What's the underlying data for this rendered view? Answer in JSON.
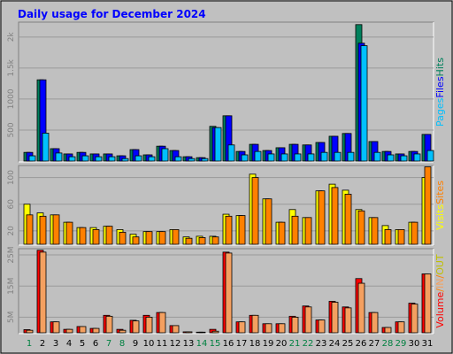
{
  "chart_data": [
    {
      "type": "bar",
      "title": "Daily usage for December 2024",
      "categories": [
        "1",
        "2",
        "3",
        "4",
        "5",
        "6",
        "7",
        "8",
        "9",
        "10",
        "11",
        "12",
        "13",
        "14",
        "15",
        "16",
        "17",
        "18",
        "19",
        "20",
        "21",
        "22",
        "23",
        "24",
        "25",
        "26",
        "27",
        "28",
        "29",
        "30",
        "31"
      ],
      "category_colors": [
        "#008040",
        "#000000",
        "#000000",
        "#000000",
        "#000000",
        "#000000",
        "#008040",
        "#008040",
        "#000000",
        "#000000",
        "#000000",
        "#000000",
        "#000000",
        "#008040",
        "#008040",
        "#000000",
        "#000000",
        "#000000",
        "#000000",
        "#000000",
        "#008040",
        "#008040",
        "#000000",
        "#000000",
        "#000000",
        "#000000",
        "#000000",
        "#008040",
        "#008040",
        "#000000",
        "#000000"
      ],
      "series": [
        {
          "name": "Hits",
          "color": "#00805c",
          "values": [
            140,
            1310,
            200,
            115,
            140,
            115,
            115,
            85,
            185,
            100,
            240,
            170,
            70,
            55,
            560,
            730,
            155,
            270,
            170,
            215,
            270,
            260,
            300,
            400,
            445,
            2200,
            315,
            155,
            115,
            155,
            430
          ]
        },
        {
          "name": "Files",
          "color": "#0000ff",
          "values": [
            140,
            1310,
            200,
            115,
            140,
            115,
            115,
            85,
            185,
            100,
            240,
            170,
            70,
            55,
            540,
            730,
            155,
            270,
            170,
            215,
            270,
            260,
            300,
            400,
            445,
            1900,
            315,
            155,
            115,
            155,
            430
          ]
        },
        {
          "name": "Pages",
          "color": "#00c0ff",
          "values": [
            85,
            450,
            130,
            70,
            85,
            70,
            70,
            40,
            85,
            70,
            200,
            70,
            40,
            40,
            540,
            260,
            100,
            155,
            115,
            115,
            115,
            115,
            140,
            140,
            140,
            1860,
            140,
            100,
            85,
            115,
            170
          ]
        }
      ],
      "legend_order": [
        2,
        1,
        0
      ],
      "ylim": [
        0,
        2240
      ],
      "yticks": [
        500,
        1000,
        {
          "value": 1500,
          "label": "1.5k"
        },
        {
          "value": 2000,
          "label": "2k"
        }
      ]
    },
    {
      "type": "bar",
      "series": [
        {
          "name": "Visits",
          "color": "#ffff00",
          "values": [
            60,
            47,
            44,
            33,
            25,
            25,
            27,
            22,
            15,
            19,
            19,
            22,
            11,
            12,
            12,
            45,
            43,
            105,
            68,
            33,
            52,
            40,
            80,
            90,
            81,
            52,
            40,
            28,
            22,
            33,
            100
          ]
        },
        {
          "name": "Sites",
          "color": "#ff8000",
          "values": [
            44,
            42,
            44,
            33,
            25,
            22,
            27,
            18,
            11,
            19,
            19,
            22,
            9,
            10,
            11,
            42,
            43,
            100,
            68,
            33,
            42,
            40,
            80,
            85,
            75,
            50,
            40,
            22,
            22,
            33,
            116
          ]
        }
      ],
      "legend_order": [
        0,
        1
      ],
      "ylim": [
        0,
        118
      ],
      "yticks": [
        20,
        60,
        100
      ]
    },
    {
      "type": "bar",
      "series": [
        {
          "name": "Volume",
          "color": "#ff0000",
          "values": [
            1,
            26.5,
            3.5,
            1.1,
            2,
            1.4,
            5.6,
            1.1,
            4,
            5.6,
            6.5,
            2.3,
            0.3,
            0.2,
            1.1,
            25.9,
            3.5,
            5.6,
            2.9,
            2.9,
            5.3,
            8.6,
            4.1,
            10.1,
            8.3,
            17.4,
            6.5,
            1.7,
            3.5,
            9.5,
            18.9
          ]
        },
        {
          "name": "IN",
          "color": "#f4a060",
          "values": [
            0.8,
            25.9,
            3.5,
            1.1,
            2,
            1.4,
            5.3,
            0.8,
            3.8,
            5,
            6.5,
            2.3,
            0.3,
            0.2,
            0.5,
            25.6,
            3.5,
            5.6,
            2.9,
            2.9,
            5,
            8.3,
            4.1,
            9.8,
            8,
            15.9,
            6.5,
            1.7,
            3.5,
            9.2,
            18.9
          ]
        }
      ],
      "legend_extra": {
        "name": "OUT",
        "color": "#c0c000"
      },
      "legend_order": [
        0,
        1
      ],
      "legend_separator": "/",
      "legend_label_color": "#ff8000",
      "ylim": [
        0,
        27
      ],
      "yticks": [
        {
          "value": 5,
          "label": "5M"
        },
        {
          "value": 15,
          "label": "15M"
        },
        {
          "value": 25,
          "label": "25M"
        }
      ]
    }
  ]
}
